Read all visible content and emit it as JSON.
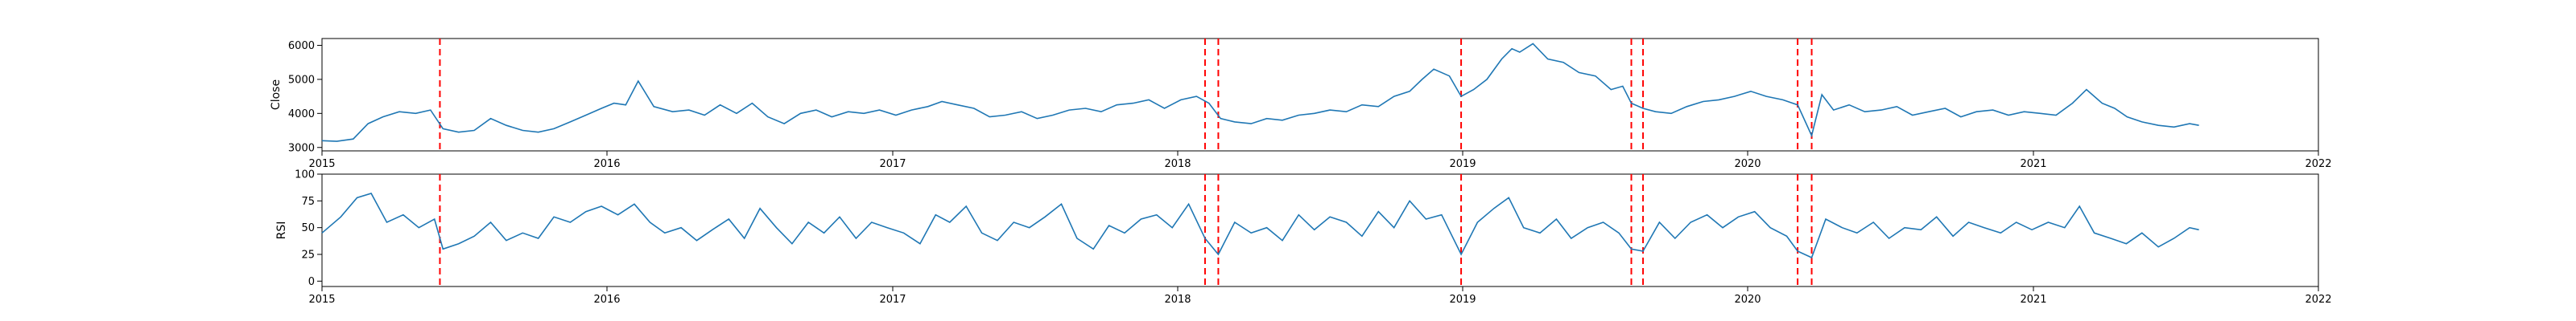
{
  "figure": {
    "background": "#ffffff",
    "line_color": "#1f77b4",
    "event_line_color": "#ff0000"
  },
  "chart_data": [
    {
      "type": "line",
      "panel": "top",
      "title": "",
      "xlabel": "",
      "ylabel": "Close",
      "xlim": [
        "2015-01-01",
        "2022-01-01"
      ],
      "ylim": [
        2900,
        6200
      ],
      "yticks": [
        3000,
        4000,
        5000,
        6000
      ],
      "ytick_labels": [
        "3000",
        "4000",
        "5000",
        "6000"
      ],
      "xticks": [
        "2015-01-01",
        "2016-01-01",
        "2017-01-01",
        "2018-01-01",
        "2019-01-01",
        "2020-01-01",
        "2021-01-01",
        "2022-01-01"
      ],
      "xtick_labels": [
        "2015",
        "2016",
        "2017",
        "2018",
        "2019",
        "2020",
        "2021",
        "2022"
      ],
      "grid": false,
      "vlines": [
        "2015-06-01",
        "2018-02-05",
        "2018-02-22",
        "2018-12-30",
        "2019-08-05",
        "2019-08-20",
        "2020-03-05",
        "2020-03-23"
      ],
      "series": [
        {
          "x": [
            "2015-01-01",
            "2015-01-20",
            "2015-02-10",
            "2015-03-01",
            "2015-03-20",
            "2015-04-10",
            "2015-05-01",
            "2015-05-20",
            "2015-06-05",
            "2015-06-25",
            "2015-07-15",
            "2015-08-05",
            "2015-08-25",
            "2015-09-15",
            "2015-10-05",
            "2015-10-25",
            "2015-11-15",
            "2015-12-05",
            "2015-12-25",
            "2016-01-10",
            "2016-01-25",
            "2016-02-10",
            "2016-03-01",
            "2016-03-25",
            "2016-04-15",
            "2016-05-05",
            "2016-05-25",
            "2016-06-15",
            "2016-07-05",
            "2016-07-25",
            "2016-08-15",
            "2016-09-05",
            "2016-09-25",
            "2016-10-15",
            "2016-11-05",
            "2016-11-25",
            "2016-12-15",
            "2017-01-05",
            "2017-01-25",
            "2017-02-15",
            "2017-03-05",
            "2017-03-25",
            "2017-04-15",
            "2017-05-05",
            "2017-05-25",
            "2017-06-15",
            "2017-07-05",
            "2017-07-25",
            "2017-08-15",
            "2017-09-05",
            "2017-09-25",
            "2017-10-15",
            "2017-11-05",
            "2017-11-25",
            "2017-12-15",
            "2018-01-05",
            "2018-01-25",
            "2018-02-10",
            "2018-02-25",
            "2018-03-15",
            "2018-04-05",
            "2018-04-25",
            "2018-05-15",
            "2018-06-05",
            "2018-06-25",
            "2018-07-15",
            "2018-08-05",
            "2018-08-25",
            "2018-09-15",
            "2018-10-05",
            "2018-10-25",
            "2018-11-10",
            "2018-11-25",
            "2018-12-15",
            "2018-12-30",
            "2019-01-15",
            "2019-02-01",
            "2019-02-20",
            "2019-03-05",
            "2019-03-15",
            "2019-04-01",
            "2019-04-20",
            "2019-05-10",
            "2019-05-30",
            "2019-06-20",
            "2019-07-10",
            "2019-07-25",
            "2019-08-05",
            "2019-08-20",
            "2019-09-05",
            "2019-09-25",
            "2019-10-15",
            "2019-11-05",
            "2019-11-25",
            "2019-12-15",
            "2020-01-05",
            "2020-01-25",
            "2020-02-15",
            "2020-03-05",
            "2020-03-23",
            "2020-04-05",
            "2020-04-20",
            "2020-05-10",
            "2020-05-30",
            "2020-06-20",
            "2020-07-10",
            "2020-07-30",
            "2020-08-20",
            "2020-09-10",
            "2020-09-30",
            "2020-10-20",
            "2020-11-10",
            "2020-11-30",
            "2020-12-20",
            "2021-01-10",
            "2021-01-30",
            "2021-02-20",
            "2021-03-10",
            "2021-03-30",
            "2021-04-15",
            "2021-05-01",
            "2021-05-20",
            "2021-06-10",
            "2021-06-30",
            "2021-07-20",
            "2021-08-01"
          ],
          "y": [
            3200,
            3180,
            3250,
            3700,
            3900,
            4050,
            4000,
            4100,
            3550,
            3450,
            3500,
            3850,
            3650,
            3500,
            3450,
            3550,
            3750,
            3950,
            4150,
            4300,
            4250,
            4950,
            4200,
            4050,
            4100,
            3950,
            4250,
            4000,
            4300,
            3900,
            3700,
            4000,
            4100,
            3900,
            4050,
            4000,
            4100,
            3950,
            4100,
            4200,
            4350,
            4250,
            4150,
            3900,
            3950,
            4050,
            3850,
            3950,
            4100,
            4150,
            4050,
            4250,
            4300,
            4400,
            4150,
            4400,
            4500,
            4300,
            3850,
            3750,
            3700,
            3850,
            3800,
            3950,
            4000,
            4100,
            4050,
            4250,
            4200,
            4500,
            4650,
            5000,
            5300,
            5100,
            4500,
            4700,
            5000,
            5600,
            5900,
            5800,
            6050,
            5600,
            5500,
            5200,
            5100,
            4700,
            4800,
            4300,
            4150,
            4050,
            4000,
            4200,
            4350,
            4400,
            4500,
            4650,
            4500,
            4400,
            4250,
            3350,
            4550,
            4100,
            4250,
            4050,
            4100,
            4200,
            3950,
            4050,
            4150,
            3900,
            4050,
            4100,
            3950,
            4050,
            4000,
            3950,
            4300,
            4700,
            4300,
            4150,
            3900,
            3750,
            3650,
            3600,
            3700,
            3650
          ]
        }
      ]
    },
    {
      "type": "line",
      "panel": "bottom",
      "title": "",
      "xlabel": "",
      "ylabel": "RSI",
      "xlim": [
        "2015-01-01",
        "2022-01-01"
      ],
      "ylim": [
        -5,
        100
      ],
      "yticks": [
        0,
        25,
        50,
        75,
        100
      ],
      "ytick_labels": [
        "0",
        "25",
        "50",
        "75",
        "100"
      ],
      "xticks": [
        "2015-01-01",
        "2016-01-01",
        "2017-01-01",
        "2018-01-01",
        "2019-01-01",
        "2020-01-01",
        "2021-01-01",
        "2022-01-01"
      ],
      "xtick_labels": [
        "2015",
        "2016",
        "2017",
        "2018",
        "2019",
        "2020",
        "2021",
        "2022"
      ],
      "grid": false,
      "vlines": [
        "2015-06-01",
        "2018-02-05",
        "2018-02-22",
        "2018-12-30",
        "2019-08-05",
        "2019-08-20",
        "2020-03-05",
        "2020-03-23"
      ],
      "series": [
        {
          "x": [
            "2015-01-01",
            "2015-01-25",
            "2015-02-15",
            "2015-03-05",
            "2015-03-25",
            "2015-04-15",
            "2015-05-05",
            "2015-05-25",
            "2015-06-05",
            "2015-06-25",
            "2015-07-15",
            "2015-08-05",
            "2015-08-25",
            "2015-09-15",
            "2015-10-05",
            "2015-10-25",
            "2015-11-15",
            "2015-12-05",
            "2015-12-25",
            "2016-01-15",
            "2016-02-05",
            "2016-02-25",
            "2016-03-15",
            "2016-04-05",
            "2016-04-25",
            "2016-05-15",
            "2016-06-05",
            "2016-06-25",
            "2016-07-15",
            "2016-08-05",
            "2016-08-25",
            "2016-09-15",
            "2016-10-05",
            "2016-10-25",
            "2016-11-15",
            "2016-12-05",
            "2016-12-25",
            "2017-01-15",
            "2017-02-05",
            "2017-02-25",
            "2017-03-15",
            "2017-04-05",
            "2017-04-25",
            "2017-05-15",
            "2017-06-05",
            "2017-06-25",
            "2017-07-15",
            "2017-08-05",
            "2017-08-25",
            "2017-09-15",
            "2017-10-05",
            "2017-10-25",
            "2017-11-15",
            "2017-12-05",
            "2017-12-25",
            "2018-01-15",
            "2018-02-05",
            "2018-02-22",
            "2018-03-15",
            "2018-04-05",
            "2018-04-25",
            "2018-05-15",
            "2018-06-05",
            "2018-06-25",
            "2018-07-15",
            "2018-08-05",
            "2018-08-25",
            "2018-09-15",
            "2018-10-05",
            "2018-10-25",
            "2018-11-15",
            "2018-12-05",
            "2018-12-30",
            "2019-01-20",
            "2019-02-10",
            "2019-03-01",
            "2019-03-20",
            "2019-04-10",
            "2019-05-01",
            "2019-05-20",
            "2019-06-10",
            "2019-06-30",
            "2019-07-20",
            "2019-08-05",
            "2019-08-20",
            "2019-09-10",
            "2019-09-30",
            "2019-10-20",
            "2019-11-10",
            "2019-11-30",
            "2019-12-20",
            "2020-01-10",
            "2020-01-30",
            "2020-02-20",
            "2020-03-05",
            "2020-03-23",
            "2020-04-10",
            "2020-05-01",
            "2020-05-20",
            "2020-06-10",
            "2020-06-30",
            "2020-07-20",
            "2020-08-10",
            "2020-08-30",
            "2020-09-20",
            "2020-10-10",
            "2020-10-30",
            "2020-11-20",
            "2020-12-10",
            "2020-12-30",
            "2021-01-20",
            "2021-02-10",
            "2021-03-01",
            "2021-03-20",
            "2021-04-10",
            "2021-04-30",
            "2021-05-20",
            "2021-06-10",
            "2021-06-30",
            "2021-07-20",
            "2021-08-01"
          ],
          "y": [
            45,
            60,
            78,
            82,
            55,
            62,
            50,
            58,
            30,
            35,
            42,
            55,
            38,
            45,
            40,
            60,
            55,
            65,
            70,
            62,
            72,
            55,
            45,
            50,
            38,
            48,
            58,
            40,
            68,
            50,
            35,
            55,
            45,
            60,
            40,
            55,
            50,
            45,
            35,
            62,
            55,
            70,
            45,
            38,
            55,
            50,
            60,
            72,
            40,
            30,
            52,
            45,
            58,
            62,
            50,
            72,
            40,
            25,
            55,
            45,
            50,
            38,
            62,
            48,
            60,
            55,
            42,
            65,
            50,
            75,
            58,
            62,
            25,
            55,
            68,
            78,
            50,
            45,
            58,
            40,
            50,
            55,
            45,
            30,
            28,
            55,
            40,
            55,
            62,
            50,
            60,
            65,
            50,
            42,
            28,
            22,
            58,
            50,
            45,
            55,
            40,
            50,
            48,
            60,
            42,
            55,
            50,
            45,
            55,
            48,
            55,
            50,
            70,
            45,
            40,
            35,
            45,
            32,
            40,
            50,
            48
          ]
        }
      ]
    }
  ]
}
